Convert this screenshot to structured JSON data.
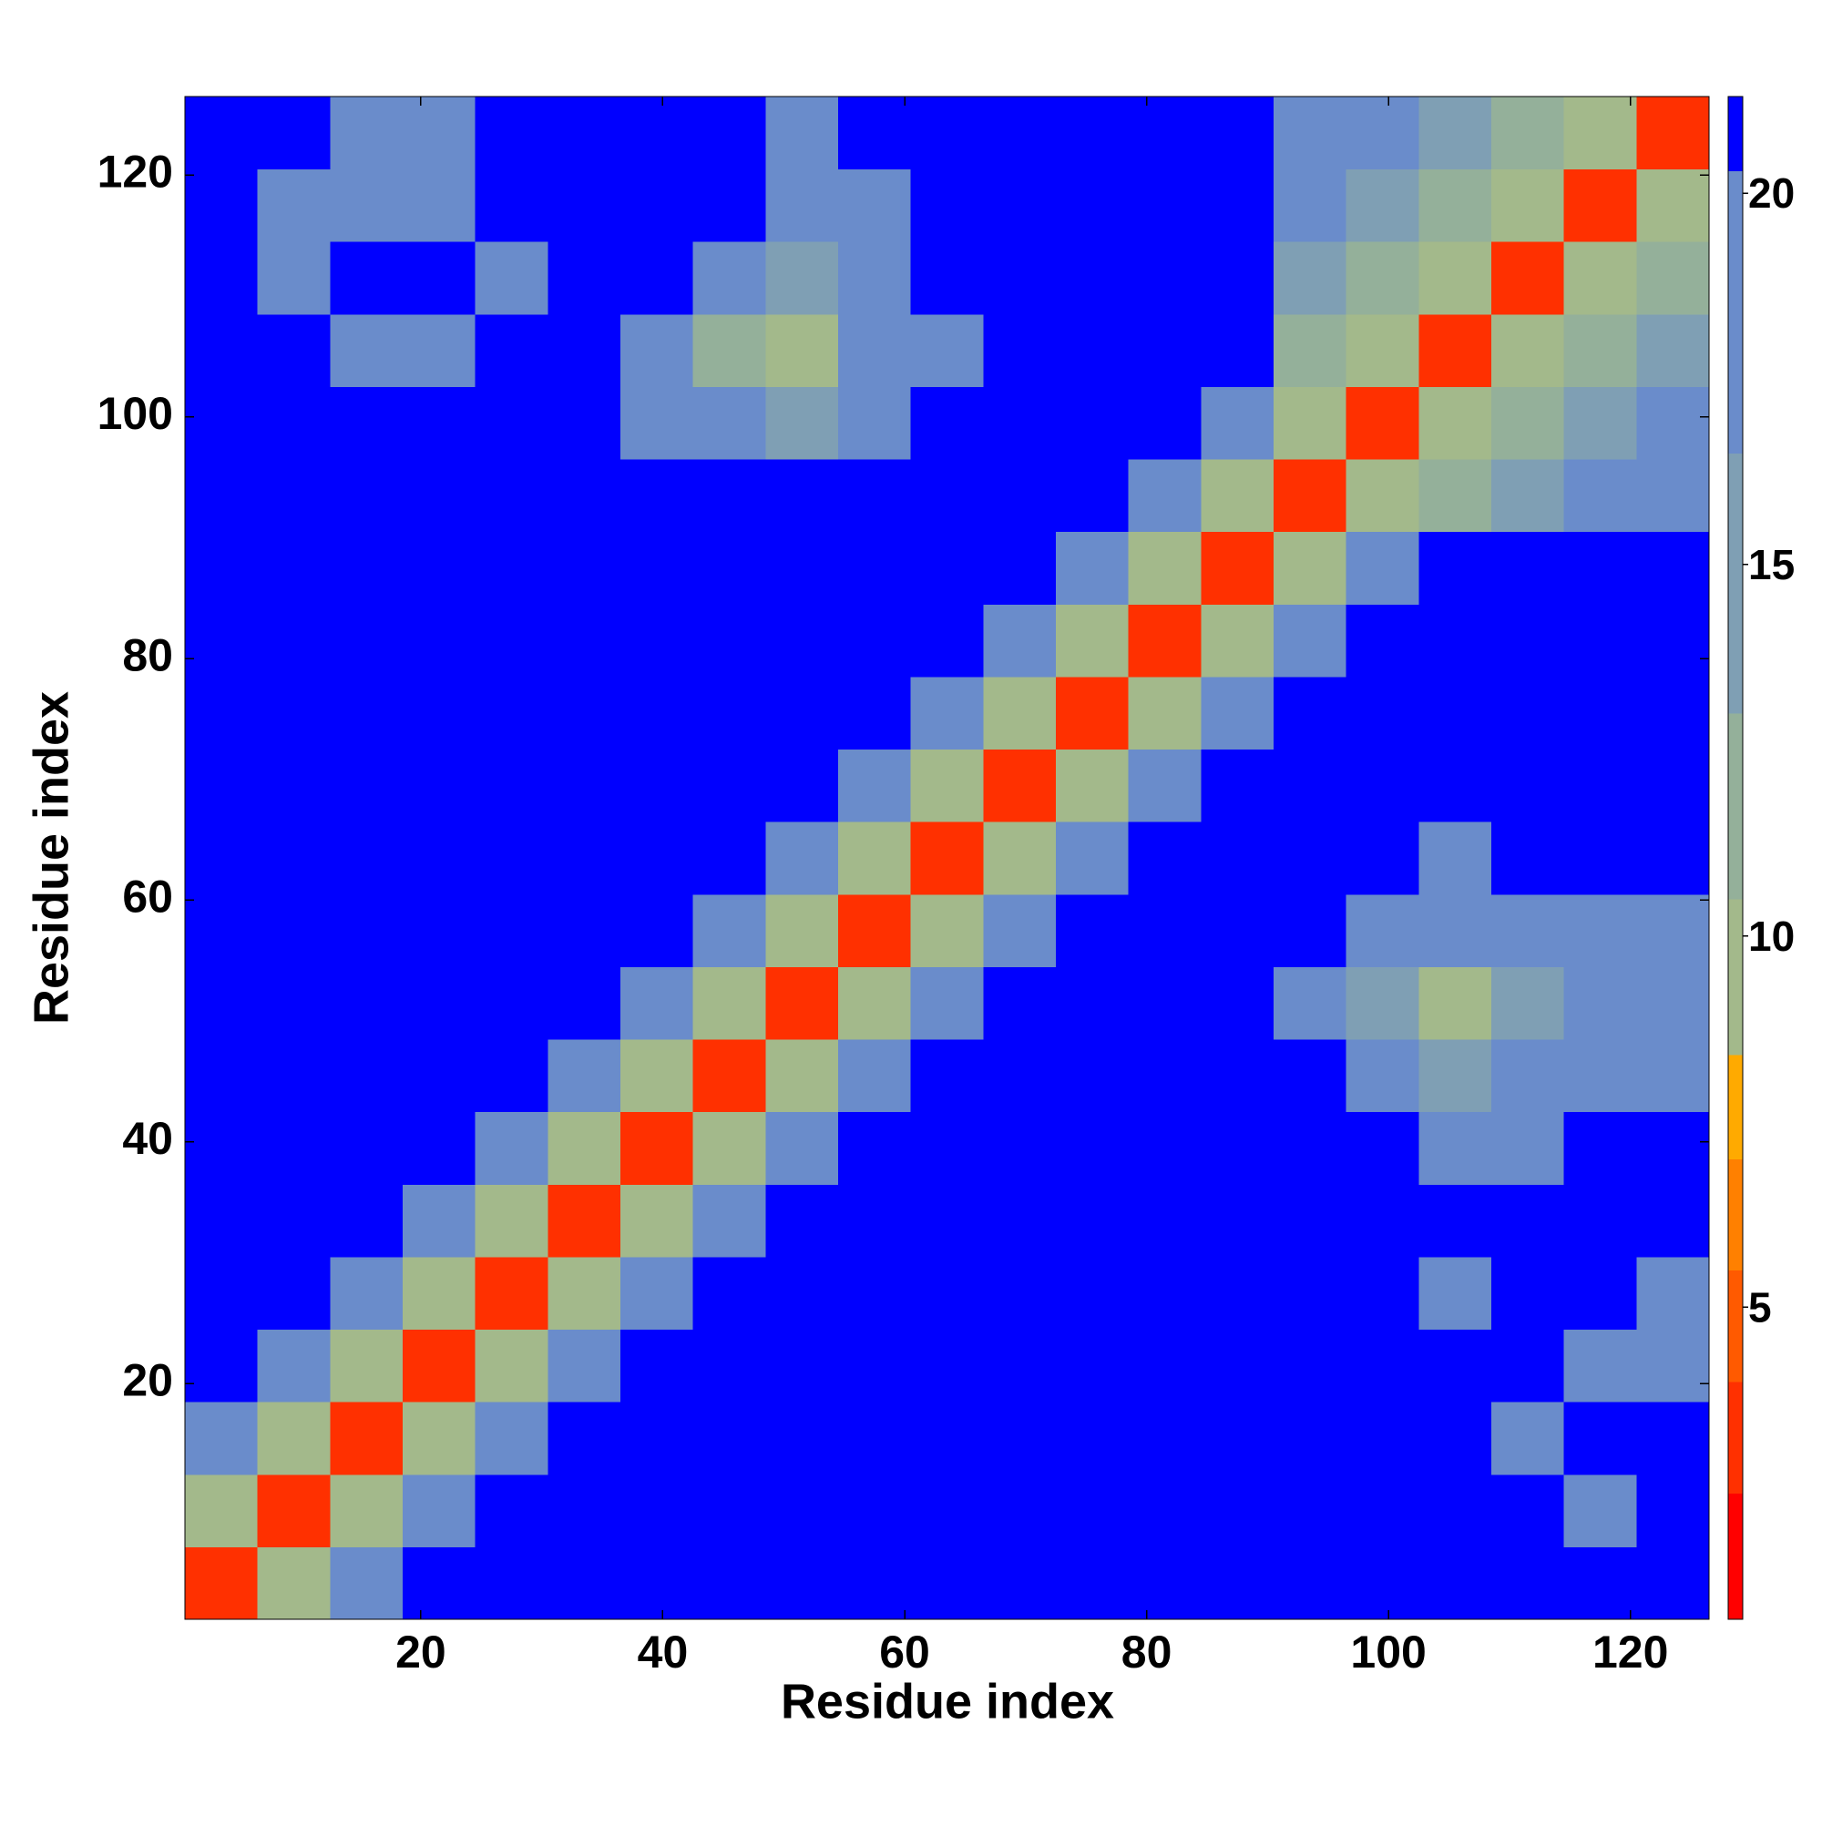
{
  "chart_data": {
    "type": "heatmap",
    "xlabel": "Residue index",
    "ylabel": "Residue index",
    "xbins": [
      0.5,
      6.5,
      12.5,
      18.5,
      24.5,
      30.5,
      36.5,
      42.5,
      48.5,
      54.5,
      60.5,
      66.5,
      72.5,
      78.5,
      84.5,
      90.5,
      96.5,
      102.5,
      108.5,
      114.5,
      120.5,
      126.5
    ],
    "ybins": [
      0.5,
      6.5,
      12.5,
      18.5,
      24.5,
      30.5,
      36.5,
      42.5,
      48.5,
      54.5,
      60.5,
      66.5,
      72.5,
      78.5,
      84.5,
      90.5,
      96.5,
      102.5,
      108.5,
      114.5,
      120.5,
      126.5
    ],
    "z": [
      [
        3,
        10,
        17,
        21,
        21,
        21,
        21,
        21,
        21,
        21,
        21,
        21,
        21,
        21,
        21,
        21,
        21,
        21,
        21,
        21,
        21
      ],
      [
        10,
        3,
        10,
        17,
        21,
        21,
        21,
        21,
        21,
        21,
        21,
        21,
        21,
        21,
        21,
        21,
        21,
        21,
        21,
        20,
        21
      ],
      [
        17,
        10,
        3,
        10,
        17,
        21,
        21,
        21,
        21,
        21,
        21,
        21,
        21,
        21,
        21,
        21,
        21,
        21,
        20,
        21,
        21
      ],
      [
        21,
        17,
        10,
        3,
        10,
        17,
        21,
        21,
        21,
        21,
        21,
        21,
        21,
        21,
        21,
        21,
        21,
        21,
        21,
        20,
        20
      ],
      [
        21,
        21,
        17,
        10,
        3,
        10,
        17,
        21,
        21,
        21,
        21,
        21,
        21,
        21,
        21,
        21,
        21,
        20,
        21,
        21,
        20
      ],
      [
        21,
        21,
        21,
        17,
        10,
        3,
        10,
        17,
        21,
        21,
        21,
        21,
        21,
        21,
        21,
        21,
        21,
        21,
        21,
        21,
        21
      ],
      [
        21,
        21,
        21,
        21,
        17,
        10,
        3,
        10,
        17,
        21,
        21,
        21,
        21,
        21,
        21,
        21,
        21,
        19,
        19,
        21,
        21
      ],
      [
        21,
        21,
        21,
        21,
        21,
        17,
        10,
        3,
        10,
        17,
        21,
        21,
        21,
        21,
        21,
        21,
        17,
        14,
        17,
        19,
        19
      ],
      [
        21,
        21,
        21,
        21,
        21,
        21,
        17,
        10,
        3,
        10,
        17,
        21,
        21,
        21,
        21,
        19,
        15,
        10,
        14,
        17,
        18
      ],
      [
        21,
        21,
        21,
        21,
        21,
        21,
        21,
        17,
        10,
        3,
        10,
        17,
        21,
        21,
        21,
        21,
        17,
        17,
        17,
        19,
        19
      ],
      [
        21,
        21,
        21,
        21,
        21,
        21,
        21,
        21,
        17,
        10,
        3,
        10,
        17,
        21,
        21,
        21,
        21,
        20,
        21,
        21,
        21
      ],
      [
        21,
        21,
        21,
        21,
        21,
        21,
        21,
        21,
        21,
        17,
        10,
        3,
        10,
        17,
        21,
        21,
        21,
        21,
        21,
        21,
        21
      ],
      [
        21,
        21,
        21,
        21,
        21,
        21,
        21,
        21,
        21,
        21,
        17,
        10,
        3,
        10,
        17,
        21,
        21,
        21,
        21,
        21,
        21
      ],
      [
        21,
        21,
        21,
        21,
        21,
        21,
        21,
        21,
        21,
        21,
        21,
        17,
        10,
        3,
        10,
        17,
        21,
        21,
        21,
        21,
        21
      ],
      [
        21,
        21,
        21,
        21,
        21,
        21,
        21,
        21,
        21,
        21,
        21,
        21,
        17,
        10,
        3,
        10,
        17,
        21,
        21,
        21,
        21
      ],
      [
        21,
        21,
        21,
        21,
        21,
        21,
        21,
        21,
        21,
        21,
        21,
        21,
        21,
        17,
        10,
        3,
        9,
        12,
        15,
        17,
        19
      ],
      [
        21,
        21,
        21,
        21,
        21,
        21,
        19,
        17,
        14,
        19,
        21,
        21,
        21,
        21,
        17,
        9,
        3,
        9,
        12,
        15,
        17
      ],
      [
        21,
        21,
        20,
        20,
        21,
        21,
        19,
        12,
        10,
        17,
        19,
        21,
        21,
        21,
        21,
        12,
        9,
        3,
        9,
        12,
        15
      ],
      [
        21,
        20,
        21,
        21,
        20,
        21,
        21,
        17,
        15,
        19,
        21,
        21,
        21,
        21,
        21,
        15,
        12,
        9,
        3,
        9,
        12
      ],
      [
        21,
        20,
        20,
        20,
        21,
        21,
        21,
        21,
        19,
        19,
        21,
        21,
        21,
        21,
        21,
        17,
        15,
        12,
        9,
        3,
        9
      ],
      [
        21,
        21,
        20,
        20,
        21,
        21,
        21,
        21,
        19,
        21,
        21,
        21,
        21,
        21,
        21,
        19,
        17,
        15,
        12,
        9,
        3
      ]
    ],
    "xlim": [
      0.5,
      126.5
    ],
    "ylim": [
      0.5,
      126.5
    ],
    "xticks": [
      20,
      40,
      60,
      80,
      100,
      120
    ],
    "yticks": [
      20,
      40,
      60,
      80,
      100,
      120
    ],
    "zlim": [
      0.8,
      21.3
    ],
    "zticks": [
      5,
      10,
      15,
      20
    ],
    "colorscale": [
      [
        2.5,
        "#ff0000"
      ],
      [
        4,
        "#ff3000"
      ],
      [
        5.5,
        "#ff5a00"
      ],
      [
        7,
        "#ff8000"
      ],
      [
        8.4,
        "#ffaa00"
      ],
      [
        10.5,
        "#a3b98b"
      ],
      [
        13,
        "#94b09a"
      ],
      [
        16.5,
        "#7f9fb4"
      ],
      [
        20.3,
        "#6a8ccb"
      ],
      [
        21.3,
        "#0000ff"
      ]
    ]
  }
}
